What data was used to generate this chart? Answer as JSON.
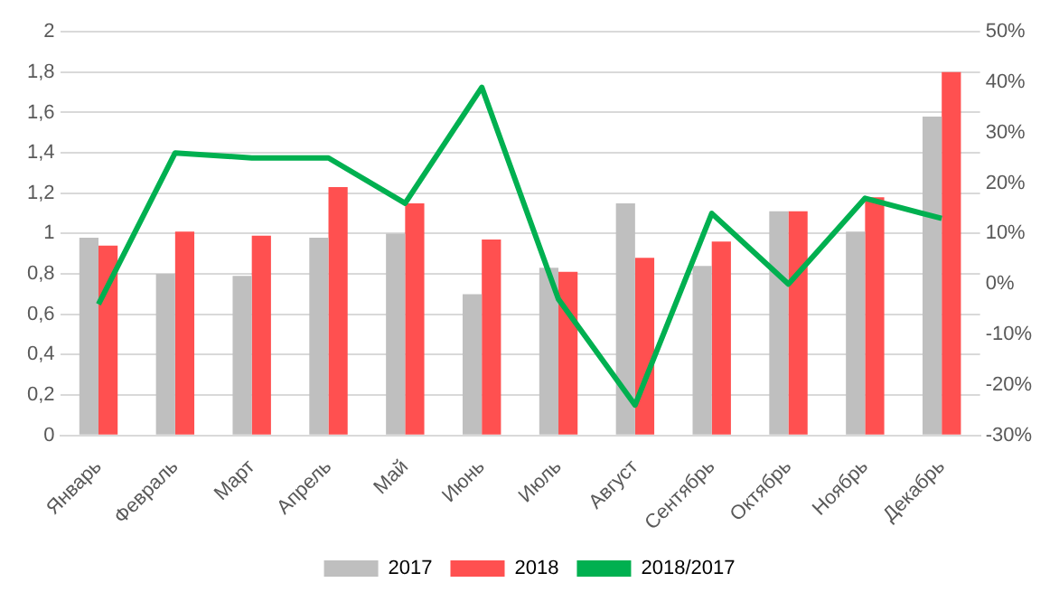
{
  "chart_data": {
    "type": "bar",
    "categories": [
      "Январь",
      "Февраль",
      "Март",
      "Апрель",
      "Май",
      "Июнь",
      "Июль",
      "Август",
      "Сентябрь",
      "Октябрь",
      "Ноябрь",
      "Декабрь"
    ],
    "series": [
      {
        "name": "2017",
        "color": "#bfbfbf",
        "values": [
          0.98,
          0.8,
          0.79,
          0.98,
          1.0,
          0.7,
          0.83,
          1.15,
          0.84,
          1.11,
          1.01,
          1.58
        ]
      },
      {
        "name": "2018",
        "color": "#ff5050",
        "values": [
          0.94,
          1.01,
          0.99,
          1.23,
          1.15,
          0.97,
          0.81,
          0.88,
          0.96,
          1.11,
          1.18,
          1.8
        ]
      },
      {
        "name": "2018/2017",
        "type": "line",
        "axis": "y2",
        "color": "#00b050",
        "values": [
          -4,
          26,
          25,
          25,
          16,
          39,
          -3,
          -24,
          14,
          0,
          17,
          13
        ]
      }
    ],
    "ylim": [
      0,
      2
    ],
    "yticks": [
      0,
      {
        "value": 0.2,
        "label": "0,2"
      },
      {
        "value": 0.4,
        "label": "0,4"
      },
      {
        "value": 0.6,
        "label": "0,6"
      },
      {
        "value": 0.8,
        "label": "0,8"
      },
      1,
      {
        "value": 1.2,
        "label": "1,2"
      },
      {
        "value": 1.4,
        "label": "1,4"
      },
      {
        "value": 1.6,
        "label": "1,6"
      },
      {
        "value": 1.8,
        "label": "1,8"
      },
      2
    ],
    "y2lim": [
      -30,
      50
    ],
    "y2ticks": [
      {
        "value": -30,
        "label": "-30%"
      },
      {
        "value": -20,
        "label": "-20%"
      },
      {
        "value": -10,
        "label": "-10%"
      },
      {
        "value": 0,
        "label": "0%"
      },
      {
        "value": 10,
        "label": "10%"
      },
      {
        "value": 20,
        "label": "20%"
      },
      {
        "value": 30,
        "label": "30%"
      },
      {
        "value": 40,
        "label": "40%"
      },
      {
        "value": 50,
        "label": "50%"
      }
    ],
    "grid": "y",
    "legend": "bottom",
    "marker": "none"
  }
}
